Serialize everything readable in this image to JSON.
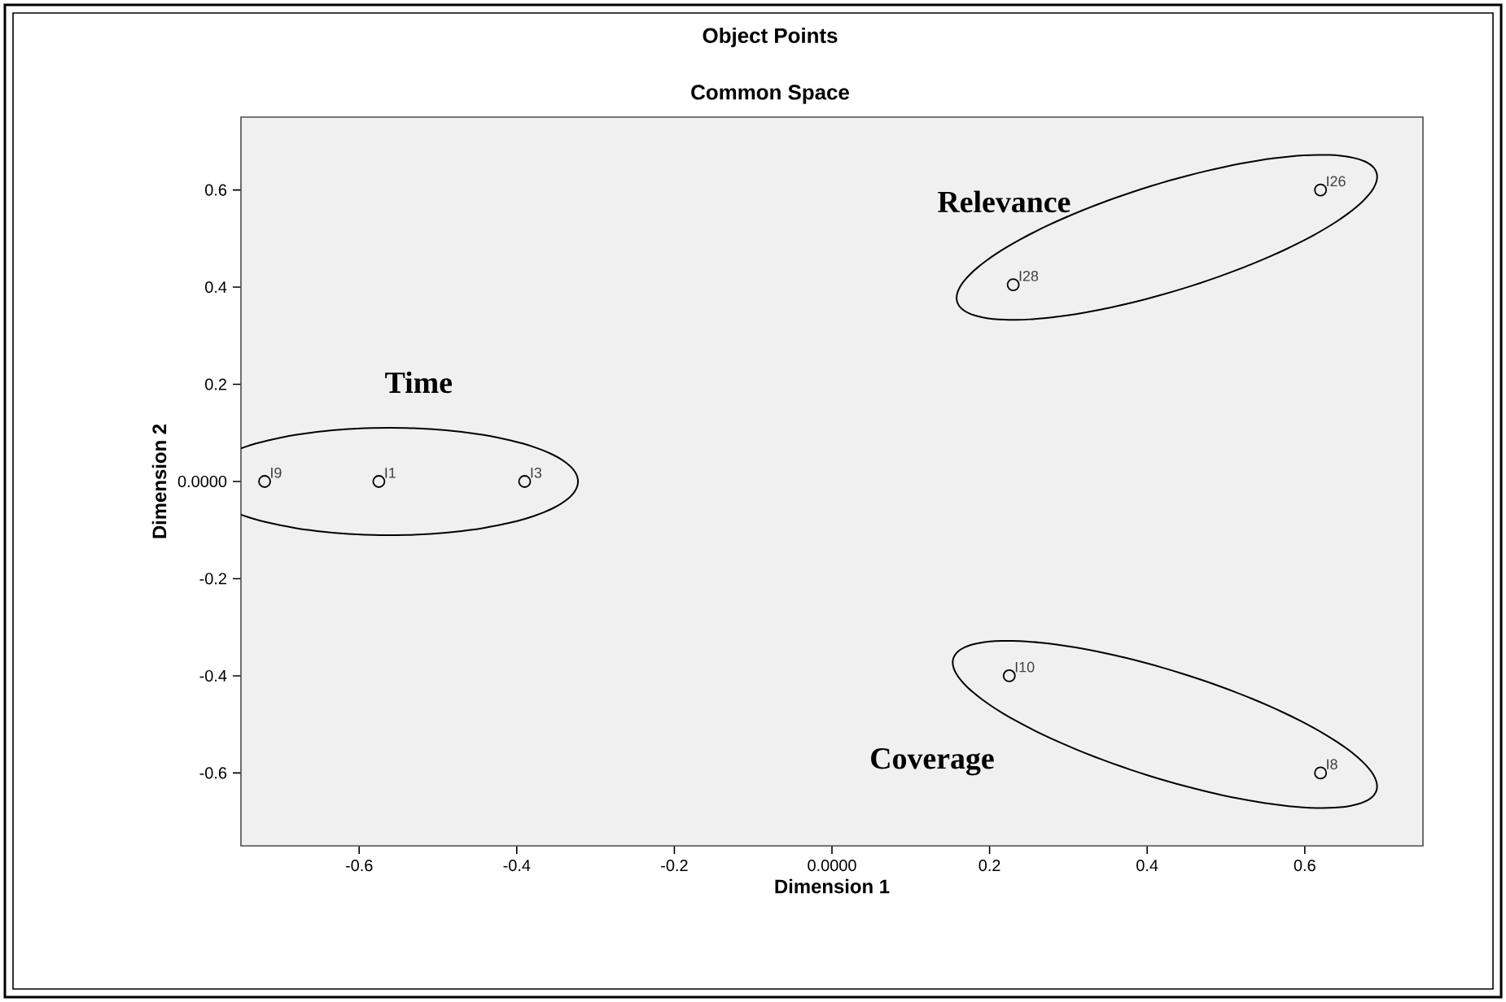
{
  "chart_data": {
    "type": "scatter",
    "title": "Object Points",
    "subtitle": "Common Space",
    "xlabel": "Dimension 1",
    "ylabel": "Dimension 2",
    "xlim": [
      -0.75,
      0.75
    ],
    "ylim": [
      -0.75,
      0.75
    ],
    "xticks": [
      -0.6,
      -0.4,
      -0.2,
      {
        "value": 0,
        "label": "0.0000"
      },
      0.2,
      0.4,
      0.6
    ],
    "yticks": [
      -0.6,
      -0.4,
      -0.2,
      {
        "value": 0,
        "label": "0.0000"
      },
      0.2,
      0.4,
      0.6
    ],
    "marker": "circle",
    "grid": false,
    "series": [
      {
        "name": "Time",
        "color": "#000000",
        "x": [
          -0.72,
          -0.575,
          -0.39
        ],
        "values": [
          0.0,
          0.0,
          0.0
        ]
      },
      {
        "name": "Relevance",
        "color": "#000000",
        "x": [
          0.23,
          0.62
        ],
        "values": [
          0.405,
          0.6
        ]
      },
      {
        "name": "Coverage",
        "color": "#000000",
        "x": [
          0.225,
          0.62
        ],
        "values": [
          -0.4,
          -0.6
        ]
      }
    ],
    "annotations": [
      {
        "text": "I9",
        "x": -0.72,
        "y": 0.0
      },
      {
        "text": "I1",
        "x": -0.575,
        "y": 0.0
      },
      {
        "text": "I3",
        "x": -0.39,
        "y": 0.0
      },
      {
        "text": "I28",
        "x": 0.23,
        "y": 0.405
      },
      {
        "text": "I26",
        "x": 0.62,
        "y": 0.6
      },
      {
        "text": "I10",
        "x": 0.225,
        "y": -0.4
      },
      {
        "text": "I8",
        "x": 0.62,
        "y": -0.6
      }
    ]
  }
}
